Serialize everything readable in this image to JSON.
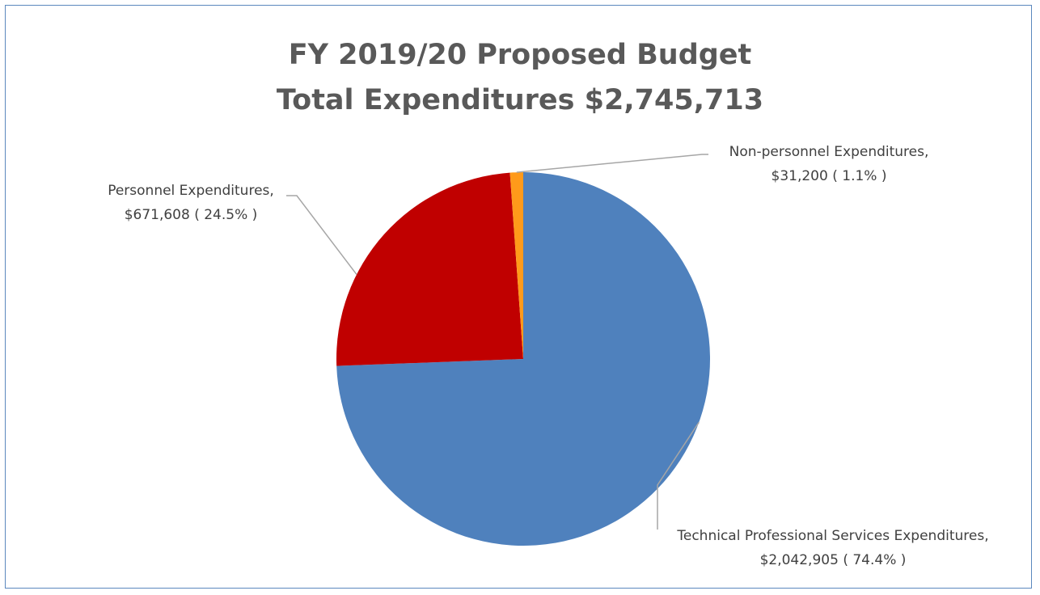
{
  "chart_data": {
    "type": "pie",
    "title": "FY 2019/20 Proposed Budget",
    "subtitle": "Total Expenditures $2,745,713",
    "slices": [
      {
        "label": "Technical Professional Services Expenditures,",
        "value": 2042905,
        "value_text": "$2,042,905",
        "percent": 74.4,
        "percent_text": "( 74.4% )",
        "color": "#4f81bd"
      },
      {
        "label": "Personnel Expenditures,",
        "value": 671608,
        "value_text": "$671,608",
        "percent": 24.5,
        "percent_text": "( 24.5% )",
        "color": "#c00000"
      },
      {
        "label": "Non-personnel Expenditures,",
        "value": 31200,
        "value_text": "$31,200",
        "percent": 1.1,
        "percent_text": "( 1.1% )",
        "color": "#ff9a1a"
      }
    ],
    "legend": "none",
    "data_labels": "outside-with-leader-lines"
  }
}
